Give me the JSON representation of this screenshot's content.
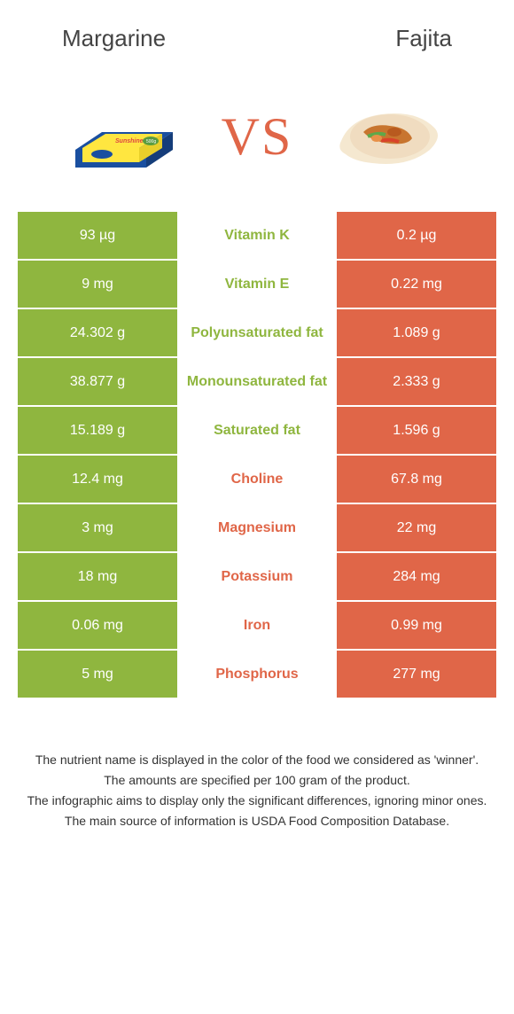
{
  "header": {
    "left_title": "Margarine",
    "right_title": "Fajita"
  },
  "vs_text": "VS",
  "colors": {
    "green": "#8fb63f",
    "orange": "#e06648",
    "text_green": "#8fb63f",
    "text_orange": "#e06648"
  },
  "rows": [
    {
      "left": "93 µg",
      "mid": "Vitamin K",
      "right": "0.2 µg",
      "winner": "left"
    },
    {
      "left": "9 mg",
      "mid": "Vitamin E",
      "right": "0.22 mg",
      "winner": "left"
    },
    {
      "left": "24.302 g",
      "mid": "Polyunsaturated fat",
      "right": "1.089 g",
      "winner": "left"
    },
    {
      "left": "38.877 g",
      "mid": "Monounsaturated fat",
      "right": "2.333 g",
      "winner": "left"
    },
    {
      "left": "15.189 g",
      "mid": "Saturated fat",
      "right": "1.596 g",
      "winner": "left"
    },
    {
      "left": "12.4 mg",
      "mid": "Choline",
      "right": "67.8 mg",
      "winner": "right"
    },
    {
      "left": "3 mg",
      "mid": "Magnesium",
      "right": "22 mg",
      "winner": "right"
    },
    {
      "left": "18 mg",
      "mid": "Potassium",
      "right": "284 mg",
      "winner": "right"
    },
    {
      "left": "0.06 mg",
      "mid": "Iron",
      "right": "0.99 mg",
      "winner": "right"
    },
    {
      "left": "5 mg",
      "mid": "Phosphorus",
      "right": "277 mg",
      "winner": "right"
    }
  ],
  "footer": {
    "line1": "The nutrient name is displayed in the color of the food we considered as 'winner'.",
    "line2": "The amounts are specified per 100 gram of the product.",
    "line3": "The infographic aims to display only the significant differences, ignoring minor ones.",
    "line4": "The main source of information is USDA Food Composition Database."
  }
}
